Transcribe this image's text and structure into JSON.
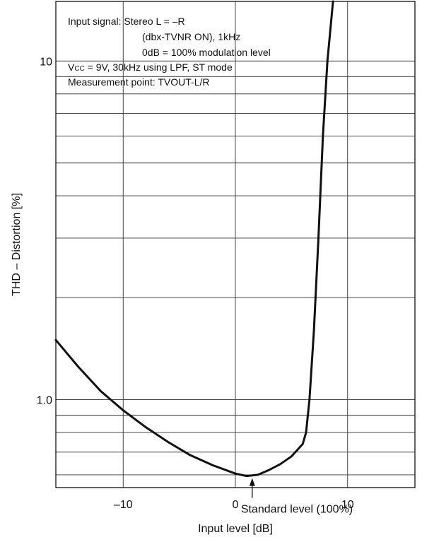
{
  "chart_data": {
    "type": "line",
    "xlabel": "Input level [dB]",
    "ylabel": "THD – Distortion [%]",
    "xlim": [
      -16,
      16
    ],
    "ylim": [
      0.55,
      15
    ],
    "yscale": "log",
    "grid": "horizontal",
    "x_ticks": [
      {
        "value": -10,
        "label": "–10"
      },
      {
        "value": 0,
        "label": "0"
      },
      {
        "value": 10,
        "label": "10"
      }
    ],
    "y_ticks": [
      {
        "value": 1.0,
        "label": "1.0"
      },
      {
        "value": 10,
        "label": "10"
      }
    ],
    "y_gridlines": [
      0.6,
      0.7,
      0.8,
      0.9,
      1,
      2,
      3,
      4,
      5,
      6,
      7,
      8,
      9,
      10
    ],
    "series": [
      {
        "color": "#111111",
        "points": [
          [
            -16,
            1.5
          ],
          [
            -14,
            1.25
          ],
          [
            -12,
            1.06
          ],
          [
            -10,
            0.93
          ],
          [
            -8,
            0.83
          ],
          [
            -6,
            0.75
          ],
          [
            -4,
            0.685
          ],
          [
            -2,
            0.64
          ],
          [
            0,
            0.605
          ],
          [
            1,
            0.595
          ],
          [
            2,
            0.6
          ],
          [
            3,
            0.62
          ],
          [
            4,
            0.645
          ],
          [
            5,
            0.68
          ],
          [
            6,
            0.74
          ],
          [
            6.3,
            0.8
          ],
          [
            6.6,
            1.0
          ],
          [
            7.0,
            1.6
          ],
          [
            7.4,
            3.0
          ],
          [
            7.8,
            6.0
          ],
          [
            8.2,
            10.0
          ],
          [
            8.7,
            15.0
          ]
        ]
      }
    ],
    "annotations": {
      "conditions": [
        "Input signal: Stereo L = –R",
        "(dbx-TVNR ON), 1kHz",
        "0dB = 100% modulation level",
        "V",
        "CC",
        " = 9V, 30kHz using LPF, ST mode",
        "Measurement point: TVOUT-L/R"
      ],
      "arrow": {
        "label": "Standard level (100%)",
        "x": 1.5,
        "y": 0.595
      }
    }
  }
}
